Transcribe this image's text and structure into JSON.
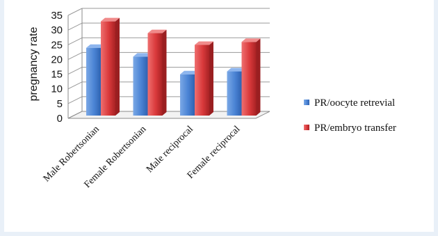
{
  "chart_data": {
    "type": "bar",
    "style": "3d-clustered-column",
    "categories": [
      "Male Robertsonian",
      "Female Robertsonian",
      "Male reciprocal",
      "Female reciprocal"
    ],
    "series": [
      {
        "name": "PR/oocyte retrevial",
        "values": [
          23,
          20,
          14,
          15
        ],
        "color": "#4a83d4"
      },
      {
        "name": "PR/embryo transfer",
        "values": [
          32,
          28,
          24,
          25
        ],
        "color": "#d9393b"
      }
    ],
    "ylabel": "pregnancy rate",
    "xlabel": "",
    "ylim": [
      0,
      35
    ],
    "yticks": [
      "0",
      "5",
      "10",
      "15",
      "20",
      "25",
      "30",
      "35"
    ],
    "grid": true,
    "legend_position": "right"
  }
}
